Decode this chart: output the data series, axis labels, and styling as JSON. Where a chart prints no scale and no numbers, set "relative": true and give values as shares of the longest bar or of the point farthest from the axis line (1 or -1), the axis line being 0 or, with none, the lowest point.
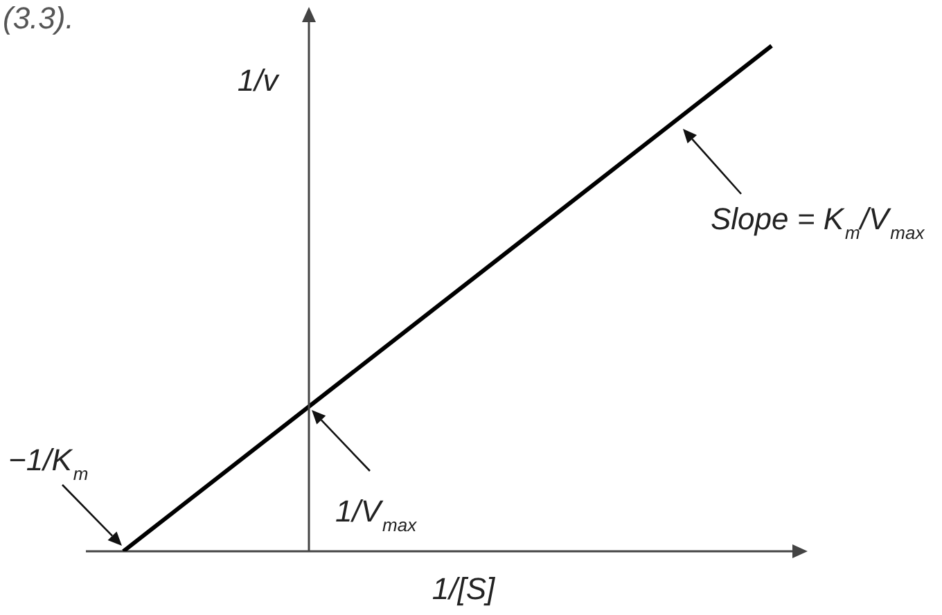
{
  "chart_data": {
    "type": "line",
    "relative": true,
    "xlabel": "1/[S]",
    "ylabel": "1/v",
    "categories": [
      null,
      null
    ],
    "series": [
      {
        "color": "#000000",
        "values": [
          0,
          1
        ]
      }
    ],
    "marker": "none",
    "annotations": [
      "−1/K$_{m}$",
      "1/V$_{max}$",
      "Slope = K$_{m}$/V$_{max}$",
      "(3.3)."
    ]
  }
}
